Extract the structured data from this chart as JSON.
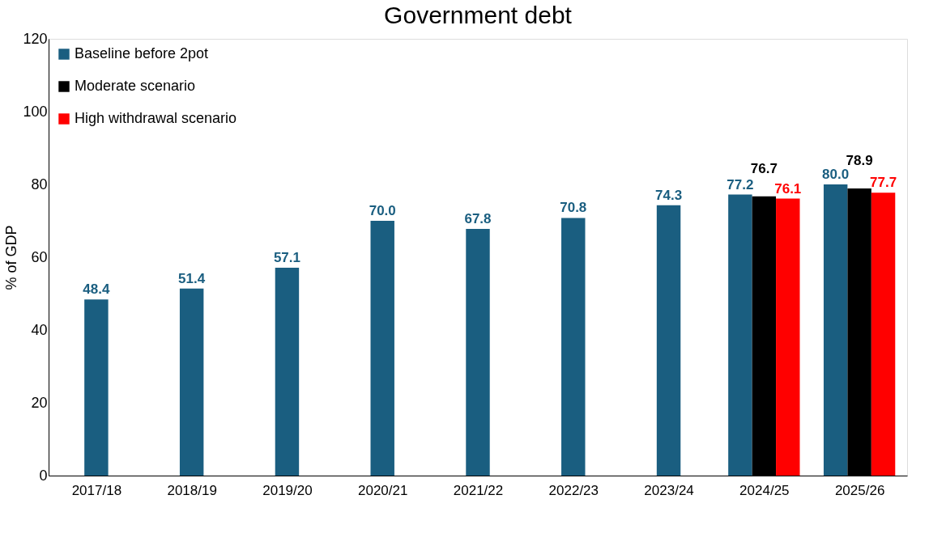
{
  "chart_data": {
    "type": "bar",
    "title": "Government debt",
    "ylabel": "% of GDP",
    "categories": [
      "2017/18",
      "2018/19",
      "2019/20",
      "2020/21",
      "2021/22",
      "2022/23",
      "2023/24",
      "2024/25",
      "2025/26"
    ],
    "series": [
      {
        "name": "Baseline before 2pot",
        "color": "#1a5e80",
        "values": [
          48.4,
          51.4,
          57.1,
          70.0,
          67.8,
          70.8,
          74.3,
          77.2,
          80.0
        ],
        "value_labels": [
          "48.4",
          "51.4",
          "57.1",
          "70.0",
          "67.8",
          "70.8",
          "74.3",
          "77.2",
          "80.0"
        ]
      },
      {
        "name": "Moderate scenario",
        "color": "#000000",
        "values": [
          null,
          null,
          null,
          null,
          null,
          null,
          null,
          76.7,
          78.9
        ],
        "value_labels": [
          null,
          null,
          null,
          null,
          null,
          null,
          null,
          "76.7",
          "78.9"
        ]
      },
      {
        "name": "High withdrawal scenario",
        "color": "#ff0000",
        "values": [
          null,
          null,
          null,
          null,
          null,
          null,
          null,
          76.1,
          77.7
        ],
        "value_labels": [
          null,
          null,
          null,
          null,
          null,
          null,
          null,
          "76.1",
          "77.7"
        ]
      }
    ],
    "ylim": [
      0,
      120
    ],
    "yticks": [
      0,
      20,
      40,
      60,
      80,
      100,
      120
    ],
    "grid": false,
    "legend": "top left"
  }
}
